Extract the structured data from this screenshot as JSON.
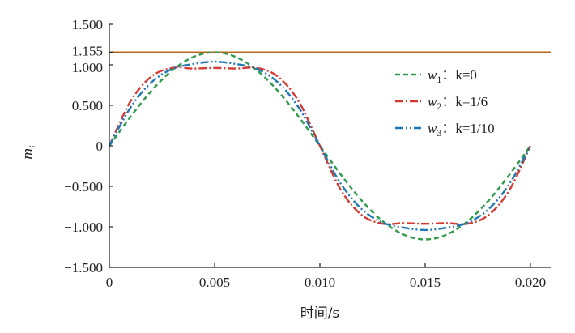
{
  "chart_data": {
    "type": "line",
    "xlabel": "时间/s",
    "ylabel": "m",
    "ylabel_subscript": "i",
    "xlim": [
      0,
      0.021
    ],
    "ylim": [
      -1.5,
      1.5
    ],
    "x_ticks": [
      0,
      0.005,
      0.01,
      0.015,
      0.02
    ],
    "x_tick_labels": [
      "0",
      "0.005",
      "0.010",
      "0.015",
      "0.020"
    ],
    "y_ticks": [
      1.5,
      1.155,
      1.0,
      0.5,
      0,
      -0.5,
      -1.0,
      -1.5
    ],
    "y_tick_labels": [
      "1.500",
      "1.155",
      "1.000",
      "0.500",
      "0",
      "−0.500",
      "−1.000",
      "−1.500"
    ],
    "grid": false,
    "legend_position": "right",
    "reference_line": {
      "y": 1.155,
      "color": "#b5651d"
    },
    "series": [
      {
        "id": "w1",
        "name": "w1: k=0",
        "legend_var": "w",
        "legend_sub": "1",
        "legend_rest": "：k=0",
        "k": 0,
        "color": "#2e9a4a",
        "dash": "6,4",
        "x": [
          0,
          0.001,
          0.002,
          0.003,
          0.004,
          0.005,
          0.006,
          0.007,
          0.008,
          0.009,
          0.01,
          0.011,
          0.012,
          0.013,
          0.014,
          0.015,
          0.016,
          0.017,
          0.018,
          0.019,
          0.02
        ],
        "y": [
          0,
          0.357,
          0.679,
          0.934,
          1.098,
          1.155,
          1.098,
          0.934,
          0.679,
          0.357,
          0,
          -0.357,
          -0.679,
          -0.934,
          -1.098,
          -1.155,
          -1.098,
          -0.934,
          -0.679,
          -0.357,
          0
        ]
      },
      {
        "id": "w2",
        "name": "w2: k=1/6",
        "legend_var": "w",
        "legend_sub": "2",
        "legend_rest": "：k=1/6",
        "k": 0.1667,
        "color": "#d23a33",
        "dash": "10,3,2,3",
        "x": [
          0,
          0.001,
          0.002,
          0.003,
          0.004,
          0.005,
          0.006,
          0.007,
          0.008,
          0.009,
          0.01,
          0.011,
          0.012,
          0.013,
          0.014,
          0.015,
          0.016,
          0.017,
          0.018,
          0.019,
          0.02
        ],
        "y": [
          0,
          0.546,
          0.856,
          0.962,
          0.954,
          0.962,
          0.954,
          0.962,
          0.856,
          0.546,
          0,
          -0.546,
          -0.856,
          -0.962,
          -0.954,
          -0.962,
          -0.954,
          -0.962,
          -0.856,
          -0.546,
          0
        ]
      },
      {
        "id": "w3",
        "name": "w3: k=1/10",
        "legend_var": "w",
        "legend_sub": "3",
        "legend_rest": "：k=1/10",
        "k": 0.1,
        "color": "#1f77b4",
        "dash": "10,3,2,3,2,3",
        "x": [
          0,
          0.001,
          0.002,
          0.003,
          0.004,
          0.005,
          0.006,
          0.007,
          0.008,
          0.009,
          0.01,
          0.011,
          0.012,
          0.013,
          0.014,
          0.015,
          0.016,
          0.017,
          0.018,
          0.019,
          0.02
        ],
        "y": [
          0,
          0.47,
          0.784,
          0.95,
          1.011,
          1.039,
          1.011,
          0.95,
          0.784,
          0.47,
          0,
          -0.47,
          -0.784,
          -0.95,
          -1.011,
          -1.039,
          -1.011,
          -0.95,
          -0.784,
          -0.47,
          0
        ]
      }
    ]
  }
}
